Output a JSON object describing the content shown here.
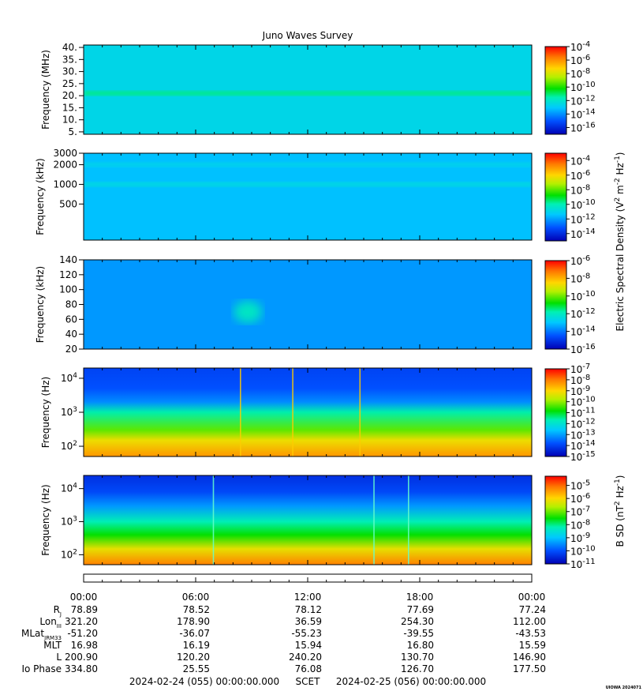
{
  "chart_data": [
    {
      "type": "heatmap",
      "title": "Juno Waves Survey",
      "ylabel": "Frequency (MHz)",
      "yscale": "linear",
      "ylim": [
        4,
        41
      ],
      "yticks": [
        {
          "v": 5,
          "label": "5."
        },
        {
          "v": 10,
          "label": "10."
        },
        {
          "v": 15,
          "label": "15."
        },
        {
          "v": 20,
          "label": "20."
        },
        {
          "v": 25,
          "label": "25."
        },
        {
          "v": 30,
          "label": "30."
        },
        {
          "v": 35,
          "label": "35."
        },
        {
          "v": 40,
          "label": "40."
        }
      ],
      "colorbar": {
        "colormap": "rainbow",
        "min_exp": -17,
        "max_exp": -4,
        "ticks": [
          "-4",
          "-6",
          "-8",
          "-10",
          "-12",
          "-14",
          "-16"
        ]
      },
      "background_level": -12.6,
      "features": [
        {
          "y": 21,
          "level": -11.2,
          "note": "narrow band"
        }
      ]
    },
    {
      "type": "heatmap",
      "ylabel": "Frequency (kHz)",
      "yscale": "log",
      "ylim": [
        140,
        3000
      ],
      "yticks": [
        {
          "v": 500,
          "label": "500"
        },
        {
          "v": 1000,
          "label": "1000"
        },
        {
          "v": 2000,
          "label": "2000"
        },
        {
          "v": 3000,
          "label": "3000"
        }
      ],
      "colorbar": {
        "colormap": "rainbow",
        "min_exp": -15,
        "max_exp": -3,
        "ticks": [
          "-4",
          "-6",
          "-8",
          "-10",
          "-12",
          "-14"
        ]
      },
      "background_level": -11.5,
      "features": [
        {
          "y": 2000,
          "level": -11.0
        },
        {
          "y": 1000,
          "level": -10.8
        }
      ]
    },
    {
      "type": "heatmap",
      "ylabel": "Frequency (kHz)",
      "yscale": "linear",
      "ylim": [
        20,
        140
      ],
      "yticks": [
        {
          "v": 20,
          "label": "20"
        },
        {
          "v": 40,
          "label": "40"
        },
        {
          "v": 60,
          "label": "60"
        },
        {
          "v": 80,
          "label": "80"
        },
        {
          "v": 100,
          "label": "100"
        },
        {
          "v": 120,
          "label": "120"
        },
        {
          "v": 140,
          "label": "140"
        }
      ],
      "colorbar": {
        "colormap": "rainbow",
        "min_exp": -16,
        "max_exp": -6,
        "ticks": [
          "-6",
          "-8",
          "-10",
          "-12",
          "-14",
          "-16"
        ]
      },
      "background_level": -13.6,
      "features": [
        {
          "x_hours": 8.8,
          "y": 70,
          "level": -12.0,
          "note": "enhanced patch"
        }
      ]
    },
    {
      "type": "heatmap",
      "ylabel": "Frequency (Hz)",
      "yscale": "log",
      "ylim": [
        50,
        20000
      ],
      "yticks": [
        {
          "v": 100,
          "label": "10",
          "exp": "2"
        },
        {
          "v": 1000,
          "label": "10",
          "exp": "3"
        },
        {
          "v": 10000,
          "label": "10",
          "exp": "4"
        }
      ],
      "colorbar": {
        "colormap": "rainbow",
        "min_exp": -15,
        "max_exp": -7,
        "ticks": [
          "-7",
          "-8",
          "-9",
          "-10",
          "-11",
          "-12",
          "-13",
          "-14",
          "-15"
        ]
      },
      "intensity_vs_frequency": [
        [
          50,
          -8.3
        ],
        [
          150,
          -9.2
        ],
        [
          300,
          -10.3
        ],
        [
          1000,
          -11.6
        ],
        [
          2000,
          -13.2
        ],
        [
          5000,
          -13.8
        ],
        [
          20000,
          -14.0
        ]
      ],
      "vertical_lines_hours": [
        8.4,
        11.2,
        14.8
      ]
    },
    {
      "type": "heatmap",
      "ylabel": "Frequency (Hz)",
      "colorbar_label": "B SD (nT² Hz⁻¹)",
      "yscale": "log",
      "ylim": [
        50,
        25000
      ],
      "yticks": [
        {
          "v": 100,
          "label": "10",
          "exp": "2"
        },
        {
          "v": 1000,
          "label": "10",
          "exp": "3"
        },
        {
          "v": 10000,
          "label": "10",
          "exp": "4"
        }
      ],
      "colorbar": {
        "colormap": "rainbow",
        "min_exp": -11,
        "max_exp": -4.3,
        "ticks": [
          "-5",
          "-6",
          "-7",
          "-8",
          "-9",
          "-10",
          "-11"
        ]
      },
      "intensity_vs_frequency": [
        [
          50,
          -5.2
        ],
        [
          150,
          -6.2
        ],
        [
          400,
          -7.5
        ],
        [
          1000,
          -8.2
        ],
        [
          3000,
          -9.4
        ],
        [
          8000,
          -10.1
        ],
        [
          25000,
          -10.4
        ]
      ],
      "vertical_lines_hours": [
        6.95,
        15.55,
        17.4
      ]
    }
  ],
  "shared_colorbar_label": {
    "base": "Electric Spectral Density (V",
    "exp1": "2",
    "mid": " m",
    "exp2": "-2",
    "mid2": " Hz",
    "exp3": "-1",
    "end": ")"
  },
  "bsd_colorbar_label": {
    "base": "B SD (nT",
    "exp1": "2",
    "mid": " Hz",
    "exp2": "-1",
    "end": ")"
  },
  "time_axis": {
    "xlim_hours": [
      0,
      24
    ],
    "labels": [
      "00:00",
      "06:00",
      "12:00",
      "18:00",
      "00:00"
    ],
    "label_hours": [
      0,
      6,
      12,
      18,
      24
    ]
  },
  "ephemeris": {
    "rows": [
      {
        "label": "R",
        "sub": "J",
        "values": [
          "78.89",
          "78.52",
          "78.12",
          "77.69",
          "77.24"
        ]
      },
      {
        "label": "Lon",
        "sub": "III",
        "values": [
          "321.20",
          "178.90",
          "36.59",
          "254.30",
          "112.00"
        ]
      },
      {
        "label": "MLat",
        "sub": "JRM33",
        "values": [
          "-51.20",
          "-36.07",
          "-55.23",
          "-39.55",
          "-43.53"
        ]
      },
      {
        "label": "MLT",
        "sub": "",
        "values": [
          "16.98",
          "16.19",
          "15.94",
          "16.80",
          "15.59"
        ]
      },
      {
        "label": "L",
        "sub": "",
        "values": [
          "200.90",
          "120.20",
          "240.20",
          "130.70",
          "146.90"
        ]
      },
      {
        "label": "Io Phase",
        "sub": "",
        "values": [
          "334.80",
          "25.55",
          "76.08",
          "126.70",
          "177.50"
        ]
      }
    ]
  },
  "footer": {
    "start": "2024-02-24 (055) 00:00:00.000",
    "mid": "SCET",
    "end": "2024-02-25 (056) 00:00:00.000",
    "stamp": "UIOWA 2024071"
  }
}
